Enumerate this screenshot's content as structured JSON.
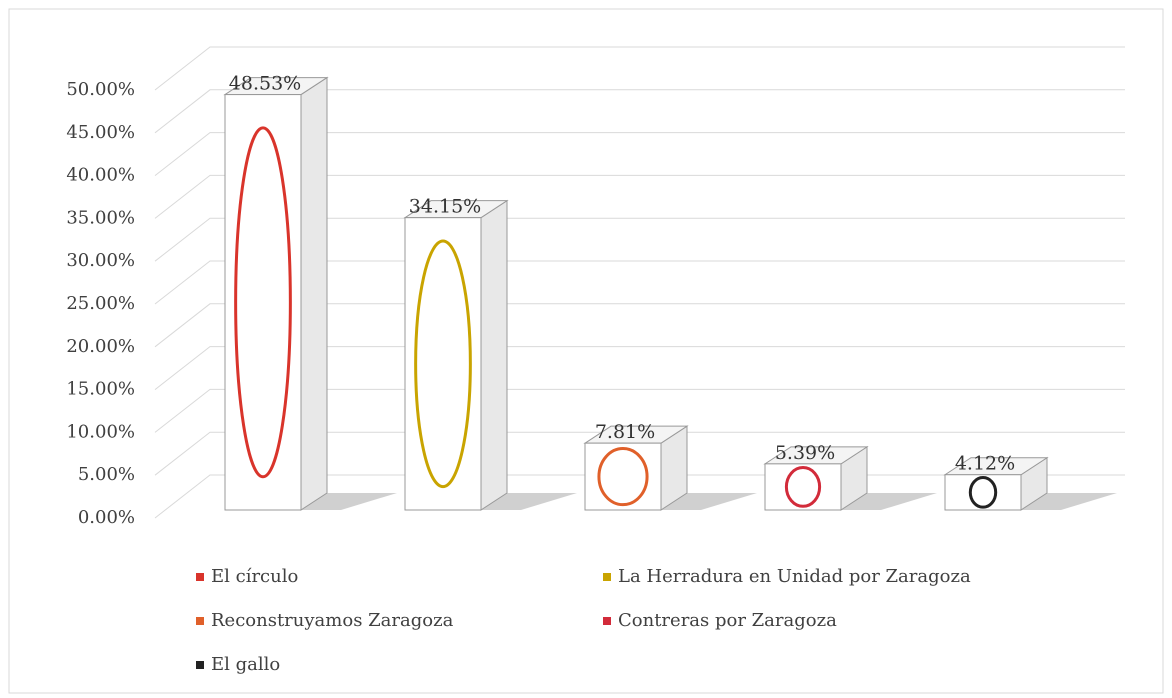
{
  "chart_data": {
    "type": "bar3d",
    "series": [
      {
        "name": "El círculo",
        "color": "#d9342b",
        "values": [
          48.53
        ],
        "value_labels": [
          "48.53%"
        ]
      },
      {
        "name": "La Herradura en Unidad por Zaragoza",
        "color": "#c9a400",
        "values": [
          34.15
        ],
        "value_labels": [
          "34.15%"
        ]
      },
      {
        "name": "Reconstruyamos Zaragoza",
        "color": "#e0602a",
        "values": [
          7.81
        ],
        "value_labels": [
          "7.81%"
        ]
      },
      {
        "name": "Contreras por Zaragoza",
        "color": "#d22b3a",
        "values": [
          5.39
        ],
        "value_labels": [
          "5.39%"
        ]
      },
      {
        "name": "El gallo",
        "color": "#222222",
        "values": [
          4.12
        ],
        "value_labels": [
          "4.12%"
        ]
      }
    ],
    "ylim": [
      0,
      50
    ],
    "yticks": [
      {
        "value": 0,
        "label": "0.00%"
      },
      {
        "value": 5,
        "label": "5.00%"
      },
      {
        "value": 10,
        "label": "10.00%"
      },
      {
        "value": 15,
        "label": "15.00%"
      },
      {
        "value": 20,
        "label": "20.00%"
      },
      {
        "value": 25,
        "label": "25.00%"
      },
      {
        "value": 30,
        "label": "30.00%"
      },
      {
        "value": 35,
        "label": "35.00%"
      },
      {
        "value": 40,
        "label": "40.00%"
      },
      {
        "value": 45,
        "label": "45.00%"
      },
      {
        "value": 50,
        "label": "50.00%"
      }
    ],
    "grid": true
  }
}
